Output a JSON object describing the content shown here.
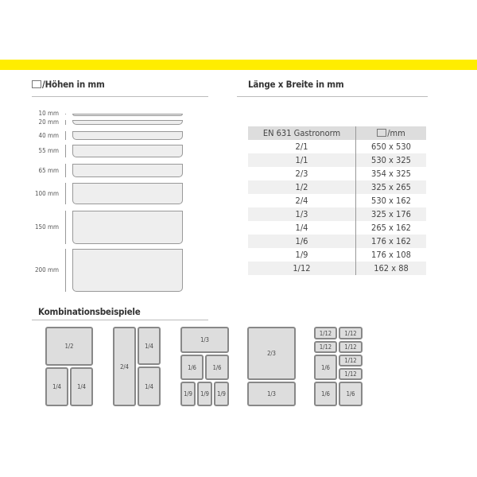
{
  "colors": {
    "accent_bar": "#ffed00",
    "pan_fill": "#dddddd",
    "pan_border": "#888888"
  },
  "heights": {
    "title": "/Höhen in mm",
    "icon": "pan-box-icon",
    "items": [
      "10 mm",
      "20 mm",
      "40 mm",
      "55 mm",
      "65 mm",
      "100 mm",
      "150 mm",
      "200 mm"
    ]
  },
  "sizes": {
    "title": "Länge x Breite in mm",
    "headers": [
      "EN 631 Gastronorm",
      "/mm"
    ],
    "header_icon": "pan-box-icon",
    "rows": [
      [
        "2/1",
        "650 x 530"
      ],
      [
        "1/1",
        "530 x 325"
      ],
      [
        "2/3",
        "354 x 325"
      ],
      [
        "1/2",
        "325 x 265"
      ],
      [
        "2/4",
        "530 x 162"
      ],
      [
        "1/3",
        "325 x 176"
      ],
      [
        "1/4",
        "265 x 162"
      ],
      [
        "1/6",
        "176 x 162"
      ],
      [
        "1/9",
        "176 x 108"
      ],
      [
        "1/12",
        "162 x 88"
      ]
    ]
  },
  "combos": {
    "title": "Kombinationsbeispiele",
    "groups": [
      [
        "1/2",
        "1/4",
        "1/4"
      ],
      [
        "2/4",
        "1/4",
        "1/4"
      ],
      [
        "1/3",
        "1/6",
        "1/6",
        "1/9",
        "1/9",
        "1/9"
      ],
      [
        "2/3",
        "1/3"
      ],
      [
        "1/12",
        "1/12",
        "1/12",
        "1/12",
        "1/6",
        "1/12",
        "1/12",
        "1/6",
        "1/6"
      ]
    ]
  }
}
